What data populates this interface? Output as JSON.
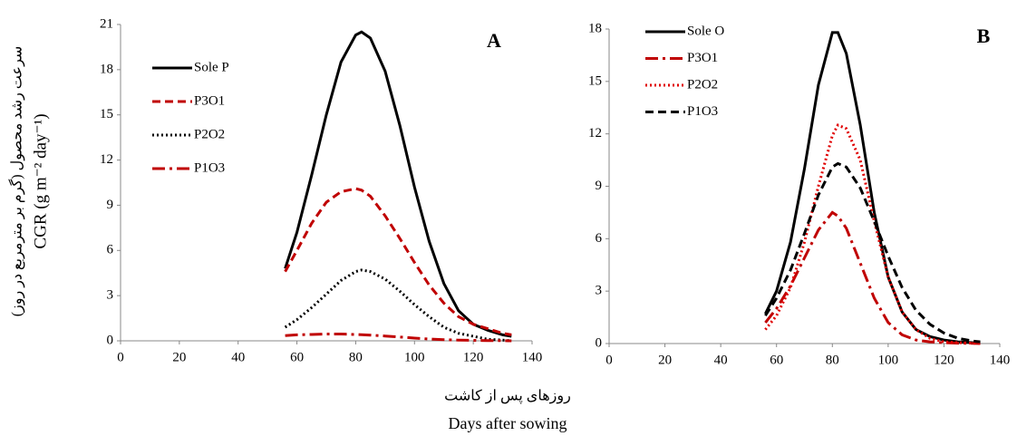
{
  "y_label_fa": "سرعت رشد محصول (گرم بر مترمربع در روز)",
  "y_label": "CGR (g m⁻² day⁻¹)",
  "x_label_fa": "روزهای پس از کاشت",
  "x_label": "Days after sowing",
  "chart_data": [
    {
      "type": "line",
      "title": "A",
      "legend": "upper left",
      "x": [
        56,
        60,
        65,
        70,
        75,
        80,
        82,
        85,
        90,
        95,
        100,
        105,
        110,
        115,
        120,
        125,
        130,
        133
      ],
      "xlim": [
        0,
        140
      ],
      "xticks": [
        0,
        20,
        40,
        60,
        80,
        100,
        120,
        140
      ],
      "ylim": [
        0,
        21
      ],
      "yticks": [
        0,
        3,
        6,
        9,
        12,
        15,
        18,
        21
      ],
      "series": [
        {
          "name": "Sole P",
          "color": "#000000",
          "style": "solid",
          "values": [
            4.8,
            7.2,
            11.0,
            15.0,
            18.5,
            20.3,
            20.5,
            20.1,
            17.9,
            14.3,
            10.2,
            6.6,
            3.8,
            2.0,
            1.1,
            0.7,
            0.4,
            0.3
          ]
        },
        {
          "name": "P3O1",
          "color": "#c00000",
          "style": "dashed",
          "values": [
            4.6,
            6.0,
            7.8,
            9.2,
            9.9,
            10.1,
            10.0,
            9.6,
            8.3,
            6.8,
            5.2,
            3.7,
            2.5,
            1.6,
            1.1,
            0.8,
            0.5,
            0.4
          ]
        },
        {
          "name": "P2O2",
          "color": "#000000",
          "style": "dotted",
          "values": [
            0.9,
            1.4,
            2.2,
            3.1,
            4.0,
            4.6,
            4.7,
            4.6,
            4.1,
            3.3,
            2.4,
            1.6,
            0.9,
            0.5,
            0.3,
            0.1,
            0.05,
            0.0
          ]
        },
        {
          "name": "P1O3",
          "color": "#c00000",
          "style": "dashdot",
          "values": [
            0.35,
            0.4,
            0.42,
            0.45,
            0.45,
            0.42,
            0.41,
            0.38,
            0.32,
            0.25,
            0.18,
            0.12,
            0.08,
            0.05,
            0.03,
            0.02,
            0.01,
            0.0
          ]
        }
      ]
    },
    {
      "type": "line",
      "title": "B",
      "legend": "upper left",
      "x": [
        56,
        60,
        65,
        70,
        75,
        80,
        82,
        85,
        90,
        95,
        100,
        105,
        110,
        115,
        120,
        125,
        130,
        133
      ],
      "xlim": [
        0,
        140
      ],
      "xticks": [
        0,
        20,
        40,
        60,
        80,
        100,
        120,
        140
      ],
      "ylim": [
        0,
        18
      ],
      "yticks": [
        0,
        3,
        6,
        9,
        12,
        15,
        18
      ],
      "series": [
        {
          "name": "Sole O",
          "color": "#000000",
          "style": "solid",
          "values": [
            1.7,
            3.0,
            5.8,
            10.0,
            14.8,
            17.8,
            17.8,
            16.6,
            12.5,
            7.5,
            3.8,
            1.8,
            0.8,
            0.4,
            0.2,
            0.1,
            0.05,
            0.02
          ]
        },
        {
          "name": "P3O1",
          "color": "#c00000",
          "style": "dashdot",
          "values": [
            1.2,
            2.0,
            3.3,
            4.9,
            6.5,
            7.5,
            7.3,
            6.6,
            4.6,
            2.6,
            1.2,
            0.5,
            0.2,
            0.1,
            0.05,
            0.02,
            0.01,
            0.0
          ]
        },
        {
          "name": "P2O2",
          "color": "#e00000",
          "style": "dotted",
          "values": [
            0.8,
            1.6,
            3.2,
            5.8,
            9.0,
            11.9,
            12.5,
            12.3,
            10.5,
            7.0,
            3.8,
            1.8,
            0.8,
            0.3,
            0.1,
            0.05,
            0.02,
            0.0
          ]
        },
        {
          "name": "P1O3",
          "color": "#000000",
          "style": "dashed",
          "values": [
            1.6,
            2.6,
            4.2,
            6.3,
            8.5,
            10.1,
            10.3,
            10.1,
            8.9,
            7.0,
            5.0,
            3.2,
            1.9,
            1.1,
            0.6,
            0.3,
            0.15,
            0.1
          ]
        }
      ]
    }
  ]
}
